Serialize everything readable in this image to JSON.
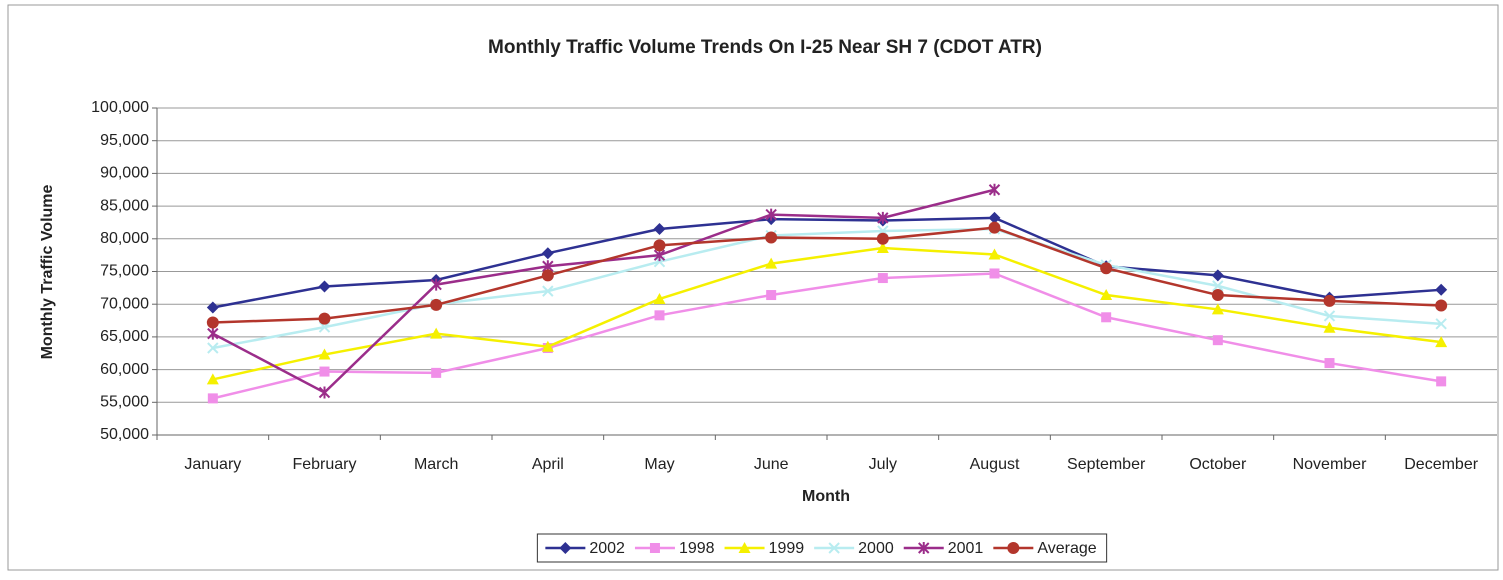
{
  "chart_data": {
    "type": "line",
    "title": "Monthly Traffic Volume Trends On I-25 Near SH 7 (CDOT ATR)",
    "x_label": "Month",
    "y_label": "Monthly Traffic Volume",
    "categories": [
      "January",
      "February",
      "March",
      "April",
      "May",
      "June",
      "July",
      "August",
      "September",
      "October",
      "November",
      "December"
    ],
    "series": [
      {
        "name": "2002",
        "color": "#2e3192",
        "marker": "diamond",
        "values": [
          69500,
          72700,
          73700,
          77800,
          81500,
          83000,
          82800,
          83200,
          75800,
          74400,
          71000,
          72200
        ]
      },
      {
        "name": "1998",
        "color": "#f08ee8",
        "marker": "square",
        "values": [
          55600,
          59700,
          59500,
          63300,
          68300,
          71400,
          74000,
          74700,
          68000,
          64500,
          61000,
          58200
        ]
      },
      {
        "name": "1999",
        "color": "#f5f000",
        "marker": "triangle",
        "values": [
          58500,
          62300,
          65500,
          63500,
          70800,
          76200,
          78600,
          77600,
          71400,
          69200,
          66400,
          64200
        ]
      },
      {
        "name": "2000",
        "color": "#b8ecf0",
        "marker": "x",
        "values": [
          63300,
          66500,
          70000,
          72000,
          76500,
          80500,
          81200,
          81500,
          76000,
          72800,
          68200,
          67000
        ]
      },
      {
        "name": "2001",
        "color": "#9b2d8a",
        "marker": "star",
        "values": [
          65500,
          56500,
          73000,
          75800,
          77500,
          83700,
          83200,
          87500,
          null,
          null,
          null,
          null
        ]
      },
      {
        "name": "Average",
        "color": "#b3362c",
        "marker": "circle",
        "values": [
          67200,
          67800,
          69900,
          74400,
          79000,
          80200,
          80000,
          81700,
          75500,
          71400,
          70500,
          69800
        ]
      }
    ],
    "ylim": [
      50000,
      100000
    ],
    "yticks": [
      {
        "value": 50000,
        "label": "50,000"
      },
      {
        "value": 55000,
        "label": "55,000"
      },
      {
        "value": 60000,
        "label": "60,000"
      },
      {
        "value": 65000,
        "label": "65,000"
      },
      {
        "value": 70000,
        "label": "70,000"
      },
      {
        "value": 75000,
        "label": "75,000"
      },
      {
        "value": 80000,
        "label": "80,000"
      },
      {
        "value": 85000,
        "label": "85,000"
      },
      {
        "value": 90000,
        "label": "90,000"
      },
      {
        "value": 95000,
        "label": "95,000"
      },
      {
        "value": 100000,
        "label": "100,000"
      }
    ],
    "grid": true,
    "legend": "bottom"
  }
}
